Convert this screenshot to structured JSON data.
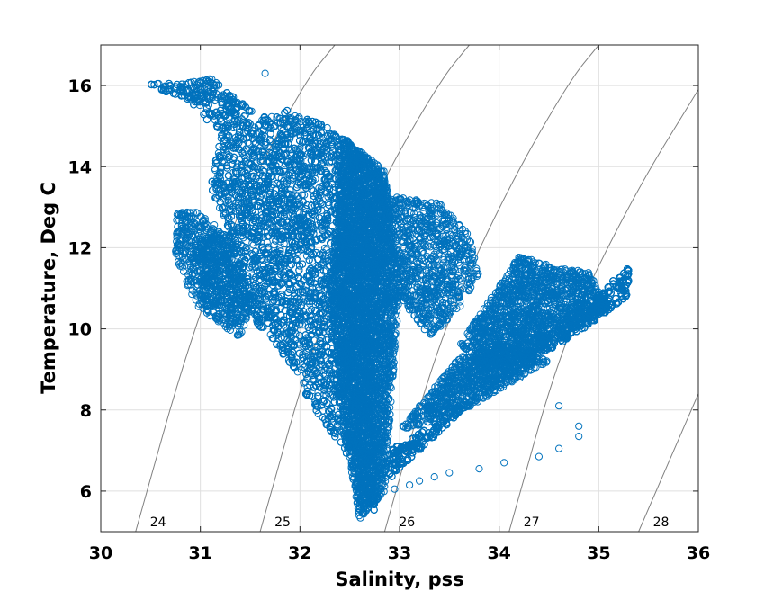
{
  "chart_data": {
    "type": "scatter",
    "xlabel": "Salinity, pss",
    "ylabel": "Temperature, Deg C",
    "xlim": [
      30,
      36
    ],
    "ylim": [
      5,
      17
    ],
    "xticks": [
      "30",
      "31",
      "32",
      "33",
      "34",
      "35",
      "36"
    ],
    "yticks": [
      "6",
      "8",
      "10",
      "12",
      "14",
      "16"
    ],
    "grid": true,
    "marker": "open-circle",
    "marker_color": "#0072BD",
    "contour_color": "#808080",
    "density_contours": [
      {
        "label": "24",
        "points": [
          [
            30.35,
            5.0
          ],
          [
            30.9,
            9.8
          ],
          [
            31.45,
            13.3
          ],
          [
            32.05,
            16.1
          ],
          [
            32.35,
            17.0
          ]
        ]
      },
      {
        "label": "25",
        "points": [
          [
            31.6,
            5.0
          ],
          [
            32.15,
            9.8
          ],
          [
            32.75,
            13.3
          ],
          [
            33.4,
            16.1
          ],
          [
            33.7,
            17.0
          ]
        ]
      },
      {
        "label": "26",
        "points": [
          [
            32.85,
            5.0
          ],
          [
            33.4,
            9.8
          ],
          [
            34.05,
            13.3
          ],
          [
            34.7,
            16.1
          ],
          [
            35.0,
            17.0
          ]
        ]
      },
      {
        "label": "27",
        "points": [
          [
            34.1,
            5.0
          ],
          [
            34.65,
            9.8
          ],
          [
            35.35,
            13.3
          ],
          [
            36.0,
            15.9
          ]
        ]
      },
      {
        "label": "28",
        "points": [
          [
            35.4,
            5.0
          ],
          [
            36.0,
            8.4
          ]
        ]
      }
    ],
    "series": [
      {
        "clusters": [
          {
            "points": [
              [
                30.45,
                16.05
              ],
              [
                30.8,
                16.05
              ],
              [
                31.1,
                16.2
              ],
              [
                31.6,
                15.2
              ],
              [
                31.9,
                15.4
              ],
              [
                32.25,
                15.0
              ],
              [
                32.5,
                14.6
              ],
              [
                32.9,
                13.6
              ],
              [
                32.8,
                10.0
              ],
              [
                32.75,
                8.0
              ],
              [
                32.75,
                5.4
              ],
              [
                32.45,
                7.0
              ],
              [
                32.15,
                8.0
              ],
              [
                31.8,
                9.5
              ],
              [
                31.4,
                10.6
              ],
              [
                31.05,
                10.6
              ],
              [
                30.95,
                12.3
              ],
              [
                31.3,
                12.3
              ],
              [
                31.1,
                13.5
              ],
              [
                31.2,
                14.8
              ],
              [
                30.9,
                15.6
              ]
            ],
            "count": 9000
          },
          {
            "points": [
              [
                32.45,
                14.7
              ],
              [
                32.85,
                13.9
              ],
              [
                33.0,
                11.0
              ],
              [
                32.85,
                6.0
              ],
              [
                32.6,
                5.3
              ],
              [
                32.45,
                7.5
              ],
              [
                32.3,
                11.0
              ]
            ],
            "count": 4000
          },
          {
            "points": [
              [
                30.75,
                12.9
              ],
              [
                31.0,
                12.9
              ],
              [
                31.3,
                12.2
              ],
              [
                31.55,
                10.8
              ],
              [
                31.4,
                9.8
              ],
              [
                31.2,
                10.1
              ],
              [
                30.95,
                10.6
              ],
              [
                30.75,
                11.8
              ]
            ],
            "count": 700
          },
          {
            "points": [
              [
                32.85,
                13.3
              ],
              [
                33.4,
                13.1
              ],
              [
                33.7,
                12.3
              ],
              [
                33.8,
                11.3
              ],
              [
                33.6,
                10.5
              ],
              [
                33.3,
                9.8
              ],
              [
                33.0,
                10.8
              ]
            ],
            "count": 900
          },
          {
            "points": [
              [
                32.9,
                7.0
              ],
              [
                33.6,
                8.0
              ],
              [
                34.3,
                9.5
              ],
              [
                34.9,
                10.7
              ],
              [
                35.3,
                11.5
              ],
              [
                35.3,
                10.8
              ],
              [
                34.9,
                10.1
              ],
              [
                34.4,
                9.3
              ],
              [
                33.8,
                8.4
              ],
              [
                33.2,
                7.0
              ],
              [
                32.9,
                6.3
              ]
            ],
            "count": 3500
          },
          {
            "points": [
              [
                33.6,
                9.6
              ],
              [
                34.2,
                11.8
              ],
              [
                34.6,
                11.5
              ],
              [
                34.9,
                11.4
              ],
              [
                35.1,
                10.5
              ],
              [
                34.4,
                9.5
              ],
              [
                33.9,
                9.0
              ]
            ],
            "count": 1600
          },
          {
            "points": [
              [
                33.0,
                7.5
              ],
              [
                33.6,
                9.3
              ],
              [
                34.1,
                9.6
              ],
              [
                34.5,
                9.2
              ],
              [
                34.0,
                8.5
              ],
              [
                33.5,
                7.8
              ]
            ],
            "count": 900
          }
        ],
        "outliers": [
          [
            31.65,
            16.3
          ],
          [
            32.95,
            6.05
          ],
          [
            33.1,
            6.15
          ],
          [
            33.2,
            6.25
          ],
          [
            33.35,
            6.35
          ],
          [
            33.5,
            6.45
          ],
          [
            33.8,
            6.55
          ],
          [
            34.05,
            6.7
          ],
          [
            34.4,
            6.85
          ],
          [
            34.6,
            7.05
          ],
          [
            34.8,
            7.35
          ],
          [
            34.8,
            7.6
          ],
          [
            34.6,
            8.1
          ]
        ]
      }
    ]
  }
}
